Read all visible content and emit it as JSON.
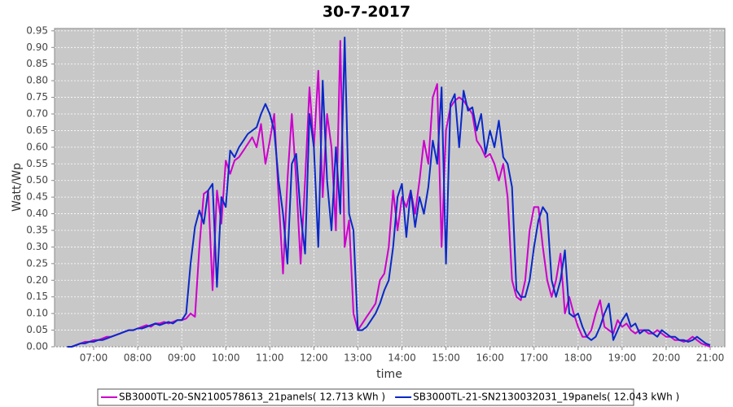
{
  "chart_data": {
    "type": "line",
    "title": "30-7-2017",
    "x_label": "time",
    "y_label": "Watt/Wp",
    "xlim": [
      6.112,
      21.333
    ],
    "ylim": [
      0,
      0.957
    ],
    "grid": true,
    "legend": "bottom",
    "xticks": [
      {
        "value": 7,
        "label": "07:00"
      },
      {
        "value": 8,
        "label": "08:00"
      },
      {
        "value": 9,
        "label": "09:00"
      },
      {
        "value": 10,
        "label": "10:00"
      },
      {
        "value": 11,
        "label": "11:00"
      },
      {
        "value": 12,
        "label": "12:00"
      },
      {
        "value": 13,
        "label": "13:00"
      },
      {
        "value": 14,
        "label": "14:00"
      },
      {
        "value": 15,
        "label": "15:00"
      },
      {
        "value": 16,
        "label": "16:00"
      },
      {
        "value": 17,
        "label": "17:00"
      },
      {
        "value": 18,
        "label": "18:00"
      },
      {
        "value": 19,
        "label": "19:00"
      },
      {
        "value": 20,
        "label": "20:00"
      },
      {
        "value": 21,
        "label": "21:00"
      }
    ],
    "yticks": [
      {
        "value": 0,
        "label": "0.00"
      },
      0.05,
      {
        "value": 0.1,
        "label": "0.10"
      },
      0.15,
      {
        "value": 0.2,
        "label": "0.20"
      },
      0.25,
      {
        "value": 0.3,
        "label": "0.30"
      },
      0.35,
      {
        "value": 0.4,
        "label": "0.40"
      },
      0.45,
      {
        "value": 0.5,
        "label": "0.50"
      },
      0.55,
      {
        "value": 0.6,
        "label": "0.60"
      },
      0.65,
      {
        "value": 0.7,
        "label": "0.70"
      },
      0.75,
      {
        "value": 0.8,
        "label": "0.80"
      },
      0.85,
      {
        "value": 0.9,
        "label": "0.90"
      },
      0.95
    ],
    "x": [
      6.4,
      6.5,
      6.6,
      6.7,
      6.8,
      6.9,
      7.0,
      7.1,
      7.2,
      7.3,
      7.4,
      7.5,
      7.6,
      7.7,
      7.8,
      7.9,
      8.0,
      8.1,
      8.2,
      8.3,
      8.4,
      8.5,
      8.6,
      8.7,
      8.8,
      8.9,
      9.0,
      9.1,
      9.2,
      9.3,
      9.4,
      9.5,
      9.6,
      9.7,
      9.8,
      9.9,
      10.0,
      10.1,
      10.2,
      10.3,
      10.4,
      10.5,
      10.6,
      10.7,
      10.8,
      10.9,
      11.0,
      11.1,
      11.2,
      11.3,
      11.4,
      11.5,
      11.6,
      11.7,
      11.8,
      11.9,
      12.0,
      12.1,
      12.2,
      12.3,
      12.4,
      12.5,
      12.6,
      12.7,
      12.8,
      12.9,
      13.0,
      13.1,
      13.2,
      13.3,
      13.4,
      13.5,
      13.6,
      13.7,
      13.8,
      13.9,
      14.0,
      14.1,
      14.2,
      14.3,
      14.4,
      14.5,
      14.6,
      14.7,
      14.8,
      14.9,
      15.0,
      15.1,
      15.2,
      15.3,
      15.4,
      15.5,
      15.6,
      15.7,
      15.8,
      15.9,
      16.0,
      16.1,
      16.2,
      16.3,
      16.4,
      16.5,
      16.6,
      16.7,
      16.8,
      16.9,
      17.0,
      17.1,
      17.2,
      17.3,
      17.4,
      17.5,
      17.6,
      17.7,
      17.8,
      17.9,
      18.0,
      18.1,
      18.2,
      18.3,
      18.4,
      18.5,
      18.6,
      18.7,
      18.8,
      18.9,
      19.0,
      19.1,
      19.2,
      19.3,
      19.4,
      19.5,
      19.6,
      19.7,
      19.8,
      19.9,
      20.0,
      20.1,
      20.2,
      20.3,
      20.4,
      20.5,
      20.6,
      20.7,
      20.8,
      20.9,
      21.0
    ],
    "series": [
      {
        "name": "SB3000TL-20-SN2100578613_21panels( 12.713 kWh )",
        "color": "#cc00cc",
        "values": [
          0,
          0,
          0.005,
          0.01,
          0.015,
          0.015,
          0.02,
          0.02,
          0.025,
          0.03,
          0.03,
          0.035,
          0.04,
          0.045,
          0.05,
          0.05,
          0.055,
          0.06,
          0.065,
          0.06,
          0.07,
          0.07,
          0.075,
          0.07,
          0.075,
          0.08,
          0.08,
          0.085,
          0.1,
          0.09,
          0.3,
          0.46,
          0.47,
          0.17,
          0.47,
          0.37,
          0.56,
          0.52,
          0.56,
          0.57,
          0.59,
          0.61,
          0.63,
          0.6,
          0.67,
          0.55,
          0.62,
          0.7,
          0.45,
          0.22,
          0.5,
          0.7,
          0.5,
          0.25,
          0.5,
          0.78,
          0.6,
          0.83,
          0.45,
          0.7,
          0.6,
          0.35,
          0.92,
          0.3,
          0.38,
          0.1,
          0.05,
          0.07,
          0.09,
          0.11,
          0.13,
          0.2,
          0.22,
          0.3,
          0.47,
          0.35,
          0.45,
          0.42,
          0.47,
          0.4,
          0.5,
          0.62,
          0.55,
          0.75,
          0.79,
          0.3,
          0.65,
          0.72,
          0.74,
          0.75,
          0.74,
          0.72,
          0.7,
          0.62,
          0.6,
          0.57,
          0.58,
          0.55,
          0.5,
          0.55,
          0.45,
          0.2,
          0.15,
          0.14,
          0.2,
          0.35,
          0.42,
          0.42,
          0.3,
          0.2,
          0.15,
          0.2,
          0.28,
          0.1,
          0.15,
          0.1,
          0.06,
          0.03,
          0.03,
          0.05,
          0.1,
          0.14,
          0.06,
          0.05,
          0.04,
          0.08,
          0.06,
          0.07,
          0.05,
          0.04,
          0.05,
          0.05,
          0.04,
          0.04,
          0.05,
          0.04,
          0.03,
          0.03,
          0.02,
          0.02,
          0.015,
          0.02,
          0.03,
          0.02,
          0.01,
          0.005,
          0
        ]
      },
      {
        "name": "SB3000TL-21-SN2130032031_19panels( 12.043 kWh )",
        "color": "#0a28c8",
        "values": [
          0,
          0,
          0.005,
          0.01,
          0.01,
          0.015,
          0.015,
          0.02,
          0.02,
          0.025,
          0.03,
          0.035,
          0.04,
          0.045,
          0.05,
          0.05,
          0.055,
          0.055,
          0.06,
          0.065,
          0.07,
          0.065,
          0.07,
          0.075,
          0.07,
          0.08,
          0.08,
          0.1,
          0.25,
          0.36,
          0.41,
          0.37,
          0.47,
          0.49,
          0.18,
          0.45,
          0.42,
          0.59,
          0.57,
          0.6,
          0.62,
          0.64,
          0.65,
          0.66,
          0.7,
          0.73,
          0.7,
          0.65,
          0.5,
          0.4,
          0.25,
          0.55,
          0.58,
          0.4,
          0.28,
          0.7,
          0.6,
          0.3,
          0.8,
          0.5,
          0.35,
          0.6,
          0.4,
          0.93,
          0.4,
          0.35,
          0.05,
          0.05,
          0.06,
          0.08,
          0.1,
          0.13,
          0.17,
          0.2,
          0.3,
          0.45,
          0.49,
          0.33,
          0.47,
          0.36,
          0.45,
          0.4,
          0.48,
          0.62,
          0.55,
          0.78,
          0.25,
          0.73,
          0.76,
          0.6,
          0.77,
          0.71,
          0.72,
          0.65,
          0.7,
          0.58,
          0.65,
          0.6,
          0.68,
          0.57,
          0.55,
          0.48,
          0.17,
          0.15,
          0.15,
          0.2,
          0.3,
          0.38,
          0.42,
          0.4,
          0.2,
          0.15,
          0.2,
          0.29,
          0.1,
          0.09,
          0.1,
          0.06,
          0.03,
          0.02,
          0.03,
          0.06,
          0.1,
          0.13,
          0.02,
          0.05,
          0.08,
          0.1,
          0.06,
          0.07,
          0.04,
          0.05,
          0.05,
          0.04,
          0.03,
          0.05,
          0.04,
          0.03,
          0.03,
          0.02,
          0.02,
          0.015,
          0.02,
          0.03,
          0.02,
          0.01,
          0.005
        ]
      }
    ]
  }
}
